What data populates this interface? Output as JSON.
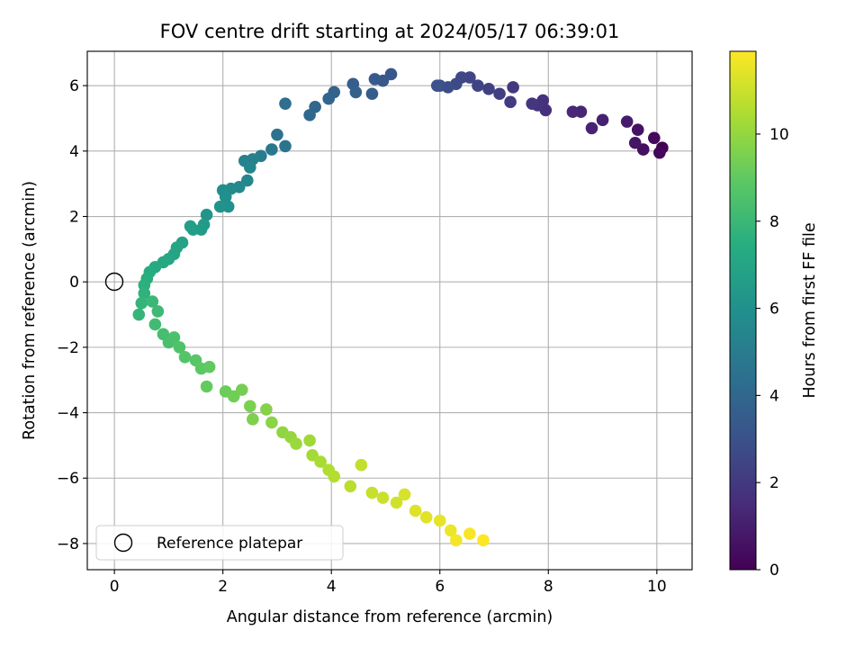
{
  "chart_data": {
    "type": "scatter",
    "title": "FOV centre drift starting at 2024/05/17 06:39:01",
    "xlabel": "Angular distance from reference (arcmin)",
    "ylabel": "Rotation from reference (arcmin)",
    "xlim": [
      -0.5,
      10.65
    ],
    "ylim": [
      -8.8,
      7.05
    ],
    "xticks": [
      0,
      2,
      4,
      6,
      8,
      10
    ],
    "yticks": [
      -8,
      -6,
      -4,
      -2,
      0,
      2,
      4,
      6
    ],
    "grid": true,
    "colormap": "viridis",
    "colorbar": {
      "label": "Hours from first FF file",
      "range": [
        0,
        11.9
      ],
      "ticks": [
        0,
        2,
        4,
        6,
        8,
        10
      ]
    },
    "reference_point": {
      "x": 0,
      "y": 0,
      "label": "Reference platepar"
    },
    "legend": {
      "placement": "lower-left",
      "entries": [
        "Reference platepar"
      ]
    },
    "points": [
      [
        10.1,
        4.1,
        0.0
      ],
      [
        10.05,
        3.95,
        0.2
      ],
      [
        9.95,
        4.4,
        0.3
      ],
      [
        9.75,
        4.05,
        0.5
      ],
      [
        9.65,
        4.65,
        0.6
      ],
      [
        9.6,
        4.25,
        0.7
      ],
      [
        9.45,
        4.9,
        0.9
      ],
      [
        9.0,
        4.95,
        1.1
      ],
      [
        8.8,
        4.7,
        1.2
      ],
      [
        8.6,
        5.2,
        1.3
      ],
      [
        8.45,
        5.2,
        1.4
      ],
      [
        7.95,
        5.25,
        1.6
      ],
      [
        7.9,
        5.55,
        1.7
      ],
      [
        7.8,
        5.4,
        1.8
      ],
      [
        7.7,
        5.45,
        1.9
      ],
      [
        7.35,
        5.95,
        2.0
      ],
      [
        7.3,
        5.5,
        2.1
      ],
      [
        7.1,
        5.75,
        2.2
      ],
      [
        6.9,
        5.9,
        2.3
      ],
      [
        6.7,
        6.0,
        2.4
      ],
      [
        6.55,
        6.25,
        2.5
      ],
      [
        6.4,
        6.25,
        2.6
      ],
      [
        6.3,
        6.05,
        2.7
      ],
      [
        6.15,
        5.95,
        2.8
      ],
      [
        6.0,
        6.0,
        2.9
      ],
      [
        5.95,
        6.0,
        3.0
      ],
      [
        5.1,
        6.35,
        3.2
      ],
      [
        4.95,
        6.15,
        3.3
      ],
      [
        4.8,
        6.2,
        3.4
      ],
      [
        4.75,
        5.75,
        3.5
      ],
      [
        4.4,
        6.05,
        3.6
      ],
      [
        4.45,
        5.8,
        3.7
      ],
      [
        4.05,
        5.8,
        3.8
      ],
      [
        3.95,
        5.6,
        3.9
      ],
      [
        3.7,
        5.35,
        4.0
      ],
      [
        3.6,
        5.1,
        4.1
      ],
      [
        3.15,
        5.45,
        4.3
      ],
      [
        3.0,
        4.5,
        4.5
      ],
      [
        3.15,
        4.15,
        4.6
      ],
      [
        2.9,
        4.05,
        4.8
      ],
      [
        2.7,
        3.85,
        5.0
      ],
      [
        2.55,
        3.75,
        5.2
      ],
      [
        2.4,
        3.7,
        5.3
      ],
      [
        2.5,
        3.5,
        5.4
      ],
      [
        2.45,
        3.1,
        5.5
      ],
      [
        2.3,
        2.9,
        5.6
      ],
      [
        2.15,
        2.85,
        5.7
      ],
      [
        2.0,
        2.8,
        5.8
      ],
      [
        2.05,
        2.6,
        5.9
      ],
      [
        2.1,
        2.3,
        6.0
      ],
      [
        1.95,
        2.3,
        6.1
      ],
      [
        1.7,
        2.05,
        6.2
      ],
      [
        1.65,
        1.75,
        6.4
      ],
      [
        1.6,
        1.6,
        6.5
      ],
      [
        1.45,
        1.6,
        6.6
      ],
      [
        1.4,
        1.7,
        6.7
      ],
      [
        1.25,
        1.2,
        6.8
      ],
      [
        1.15,
        1.05,
        6.9
      ],
      [
        1.1,
        0.85,
        7.0
      ],
      [
        1.0,
        0.7,
        7.1
      ],
      [
        0.9,
        0.6,
        7.2
      ],
      [
        0.75,
        0.45,
        7.3
      ],
      [
        0.65,
        0.3,
        7.4
      ],
      [
        0.6,
        0.1,
        7.5
      ],
      [
        0.55,
        -0.1,
        7.6
      ],
      [
        0.55,
        -0.35,
        7.7
      ],
      [
        0.5,
        -0.65,
        7.8
      ],
      [
        0.45,
        -1.0,
        7.9
      ],
      [
        0.7,
        -0.6,
        8.0
      ],
      [
        0.8,
        -0.9,
        8.1
      ],
      [
        0.75,
        -1.3,
        8.2
      ],
      [
        0.9,
        -1.6,
        8.3
      ],
      [
        1.0,
        -1.85,
        8.4
      ],
      [
        1.1,
        -1.7,
        8.5
      ],
      [
        1.2,
        -2.0,
        8.6
      ],
      [
        1.3,
        -2.3,
        8.7
      ],
      [
        1.5,
        -2.4,
        8.8
      ],
      [
        1.6,
        -2.65,
        8.9
      ],
      [
        1.75,
        -2.6,
        9.0
      ],
      [
        1.7,
        -3.2,
        9.1
      ],
      [
        2.05,
        -3.35,
        9.2
      ],
      [
        2.2,
        -3.5,
        9.3
      ],
      [
        2.35,
        -3.3,
        9.4
      ],
      [
        2.5,
        -3.8,
        9.5
      ],
      [
        2.55,
        -4.2,
        9.6
      ],
      [
        2.8,
        -3.9,
        9.7
      ],
      [
        2.9,
        -4.3,
        9.8
      ],
      [
        3.1,
        -4.6,
        9.9
      ],
      [
        3.25,
        -4.75,
        10.0
      ],
      [
        3.35,
        -4.95,
        10.1
      ],
      [
        3.6,
        -4.85,
        10.2
      ],
      [
        3.65,
        -5.3,
        10.3
      ],
      [
        3.8,
        -5.5,
        10.4
      ],
      [
        3.95,
        -5.75,
        10.5
      ],
      [
        4.05,
        -5.95,
        10.6
      ],
      [
        4.35,
        -6.25,
        10.7
      ],
      [
        4.55,
        -5.6,
        10.8
      ],
      [
        4.75,
        -6.45,
        10.9
      ],
      [
        4.95,
        -6.6,
        11.0
      ],
      [
        5.2,
        -6.75,
        11.1
      ],
      [
        5.35,
        -6.5,
        11.2
      ],
      [
        5.55,
        -7.0,
        11.3
      ],
      [
        5.75,
        -7.2,
        11.4
      ],
      [
        6.0,
        -7.3,
        11.5
      ],
      [
        6.2,
        -7.6,
        11.6
      ],
      [
        6.3,
        -7.9,
        11.7
      ],
      [
        6.55,
        -7.7,
        11.8
      ],
      [
        6.8,
        -7.9,
        11.9
      ]
    ]
  }
}
